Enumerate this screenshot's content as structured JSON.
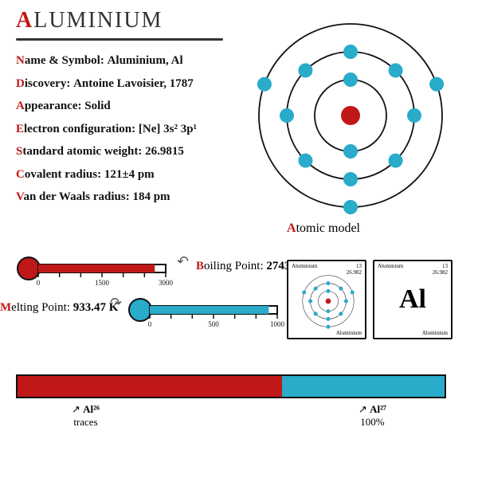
{
  "title": {
    "first": "A",
    "rest": "LUMINIUM"
  },
  "facts": [
    {
      "k": "N",
      "rest": "ame & Symbol:",
      "v": "Aluminium, Al"
    },
    {
      "k": "D",
      "rest": "iscovery:",
      "v": "Antoine Lavoisier, 1787"
    },
    {
      "k": "A",
      "rest": "ppearance:",
      "v": "Solid"
    },
    {
      "k": "E",
      "rest": "lectron configuration:",
      "v": "[Ne] 3s² 3p¹"
    },
    {
      "k": "S",
      "rest": "tandard atomic weight:",
      "v": "26.9815"
    },
    {
      "k": "C",
      "rest": "ovalent radius:",
      "v": "121±4 pm"
    },
    {
      "k": "V",
      "rest": "an der Waals radius:",
      "v": "184 pm"
    }
  ],
  "atom": {
    "label_first": "A",
    "label_rest": "tomic model",
    "nucleus_color": "#c01818",
    "electron_color": "#29abca",
    "ring_color": "#111111",
    "shells": [
      {
        "r": 45,
        "count": 2
      },
      {
        "r": 80,
        "count": 8
      },
      {
        "r": 115,
        "count": 3,
        "angles": [
          90,
          200,
          340
        ]
      }
    ]
  },
  "thermometers": {
    "boiling": {
      "color": "#c01818",
      "label_k": "B",
      "label_rest": "oiling Point:",
      "value": "2743 K",
      "min": 0,
      "max": 3000,
      "ticks": [
        0,
        1500,
        3000
      ],
      "fill_value": 2743
    },
    "melting": {
      "color": "#29abca",
      "label_k": "M",
      "label_rest": "elting Point:",
      "value": "933.47 K",
      "min": 0,
      "max": 1000,
      "ticks": [
        0,
        500,
        1000
      ],
      "fill_value": 933.47
    }
  },
  "cards": {
    "left": {
      "tl": "Aluminium",
      "tr_top": "13",
      "tr_bot": "26.982",
      "br": "Aluminium"
    },
    "right": {
      "tl": "Aluminium",
      "tr_top": "13",
      "tr_bot": "26.982",
      "br": "Aluminium",
      "symbol": "Al"
    }
  },
  "isotopes": {
    "bar_pct": [
      62,
      38
    ],
    "colors": [
      "#c01818",
      "#29abca"
    ],
    "left": {
      "iso": "Al²⁶",
      "abund": "traces"
    },
    "right": {
      "iso": "Al²⁷",
      "abund": "100%"
    }
  }
}
